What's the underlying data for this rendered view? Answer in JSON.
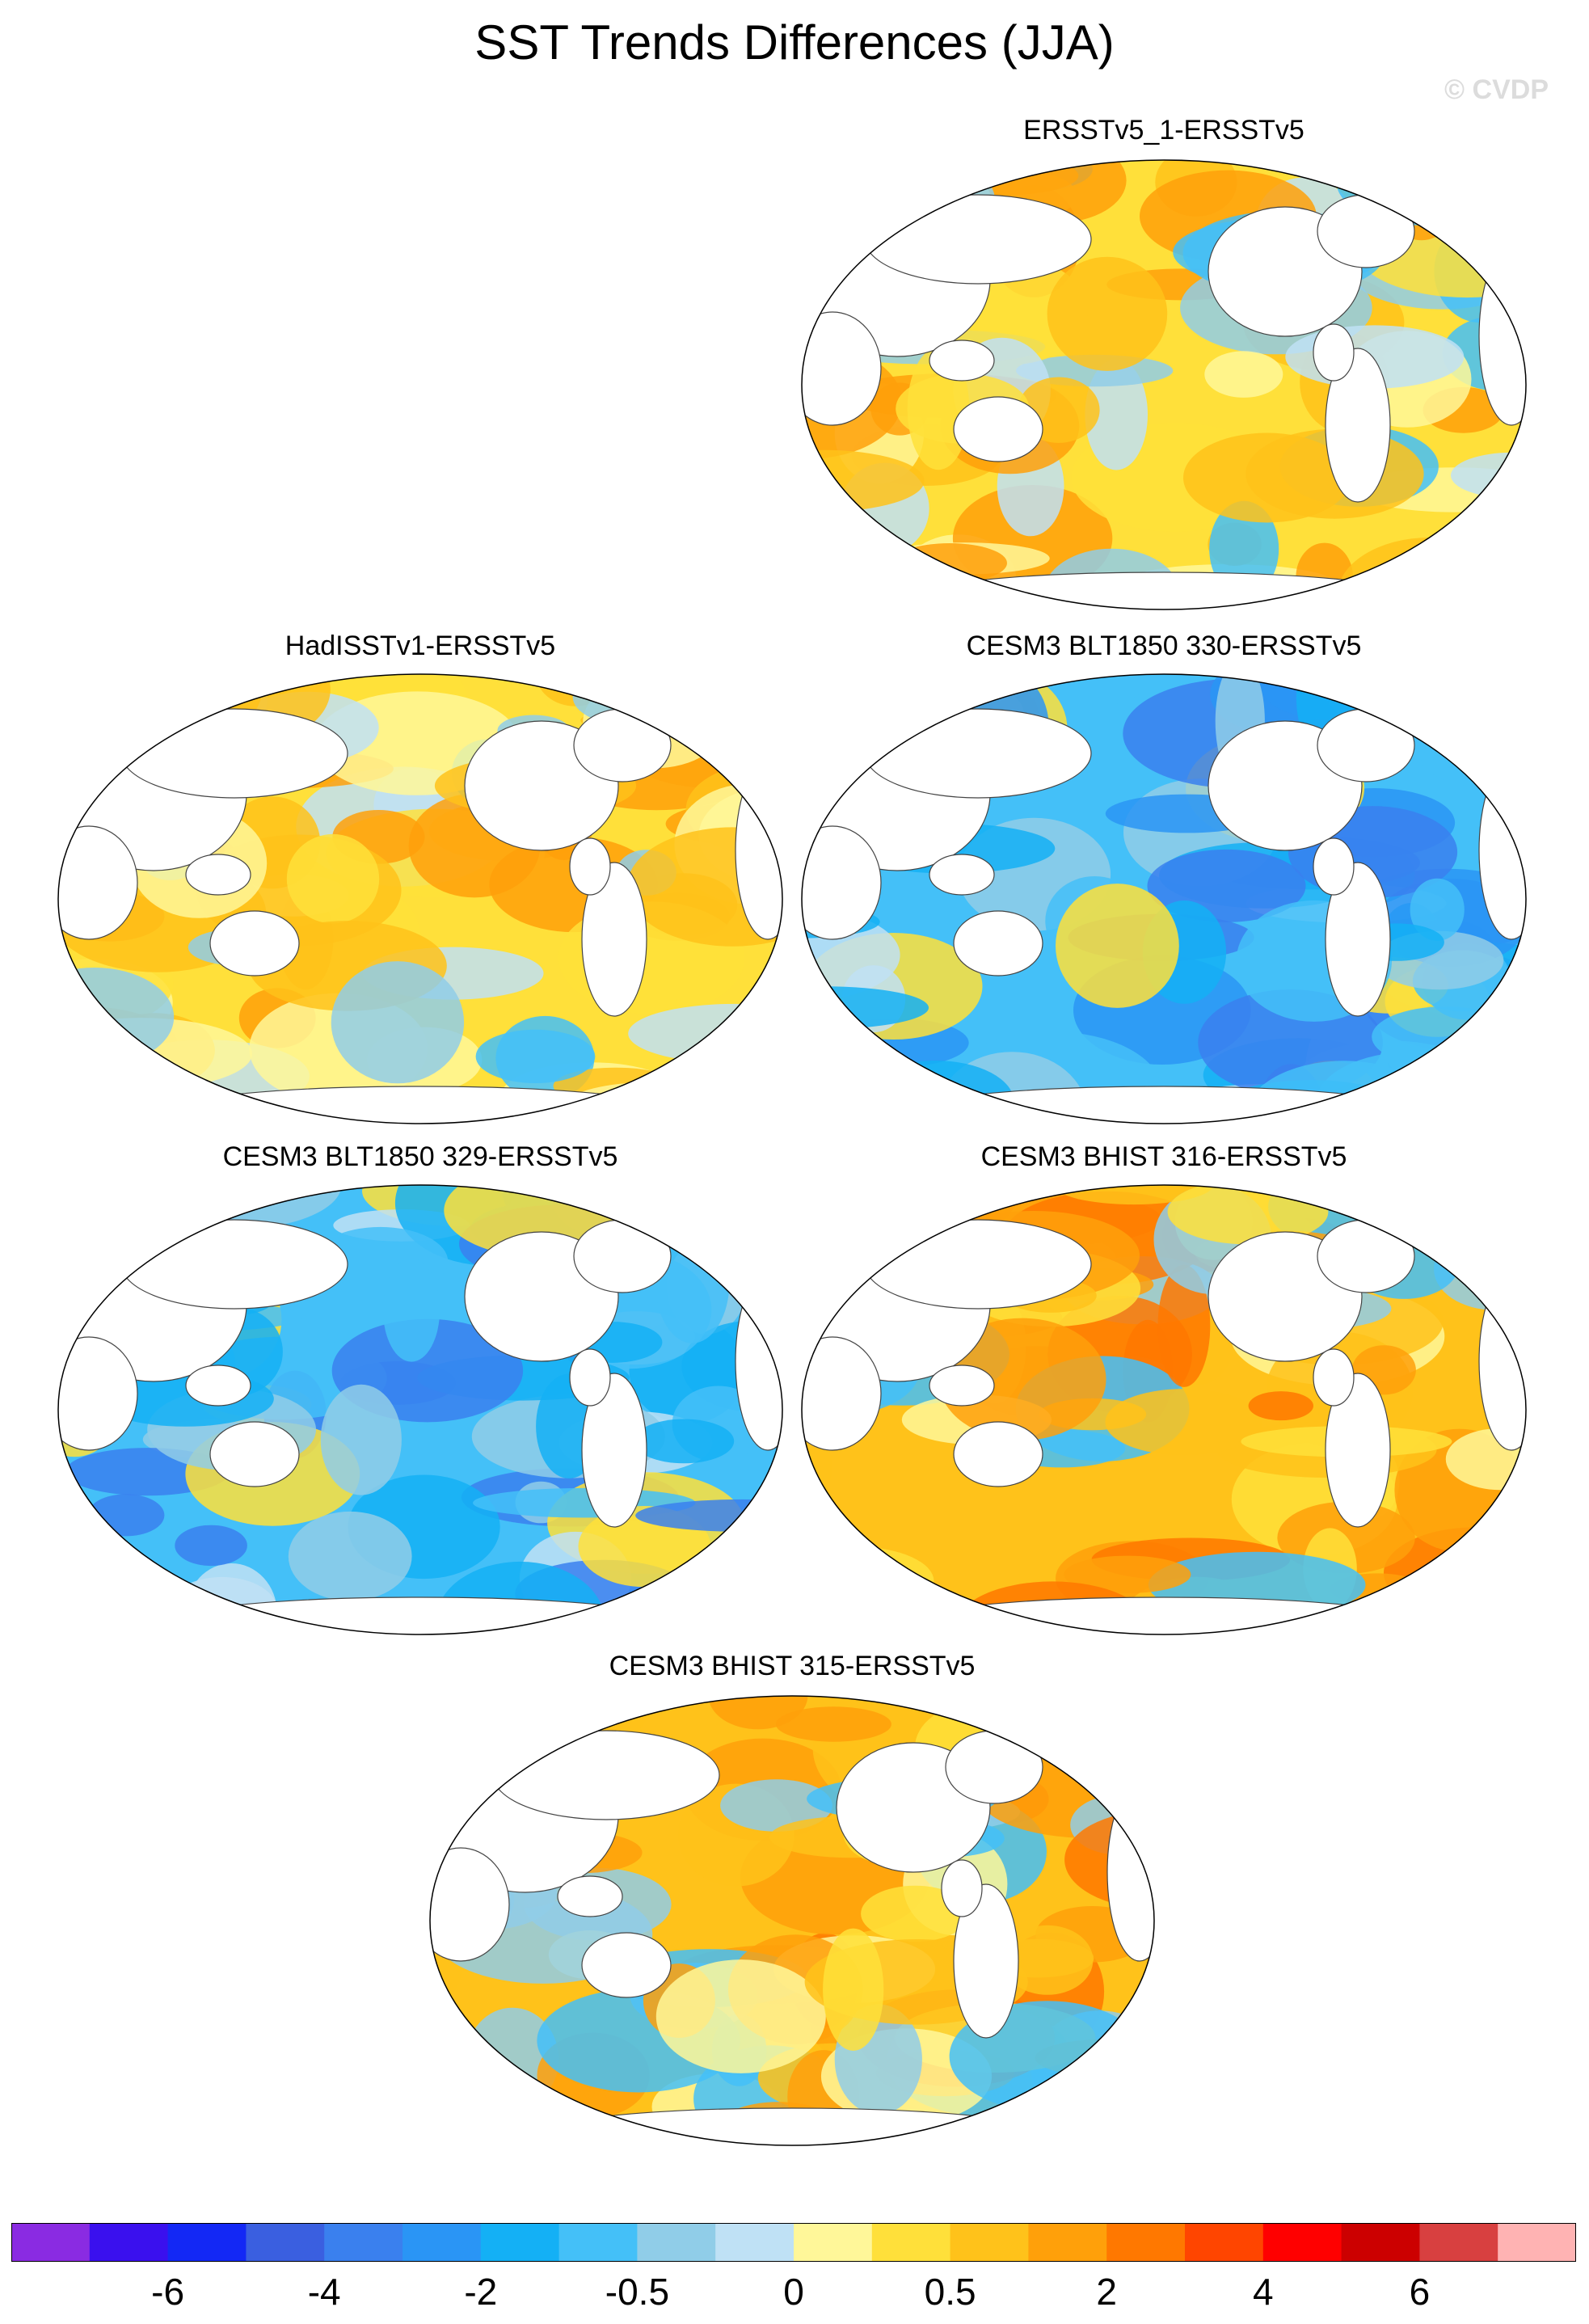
{
  "title": "SST Trends Differences (JJA)",
  "watermark": "© CVDP",
  "panels": [
    {
      "title": "ERSSTv5_1-ERSSTv5",
      "pattern": "mixed-warm"
    },
    {
      "title": "HadISSTv1-ERSSTv5",
      "pattern": "mixed-warm"
    },
    {
      "title": "CESM3 BLT1850 330-ERSSTv5",
      "pattern": "cool"
    },
    {
      "title": "CESM3 BLT1850 329-ERSSTv5",
      "pattern": "cool"
    },
    {
      "title": "CESM3 BHIST 316-ERSSTv5",
      "pattern": "warm"
    },
    {
      "title": "CESM3 BHIST 315-ERSSTv5",
      "pattern": "warm"
    }
  ],
  "colorbar": {
    "colors": [
      "#8a2be2",
      "#3a10ee",
      "#1328f5",
      "#3a5fe0",
      "#3a80ee",
      "#2a95f5",
      "#14b0f5",
      "#44c0f8",
      "#90cde8",
      "#bfe1f5",
      "#fff799",
      "#ffe03a",
      "#ffc21a",
      "#ffa00a",
      "#ff7800",
      "#ff4500",
      "#ff0000",
      "#cc0000",
      "#d84040",
      "#ffb3b3"
    ],
    "labels": [
      {
        "text": "-6",
        "boundary": 2
      },
      {
        "text": "-4",
        "boundary": 4
      },
      {
        "text": "-2",
        "boundary": 6
      },
      {
        "text": "-0.5",
        "boundary": 8
      },
      {
        "text": "0",
        "boundary": 10
      },
      {
        "text": "0.5",
        "boundary": 12
      },
      {
        "text": "2",
        "boundary": 14
      },
      {
        "text": "4",
        "boundary": 16
      },
      {
        "text": "6",
        "boundary": 18
      }
    ]
  }
}
